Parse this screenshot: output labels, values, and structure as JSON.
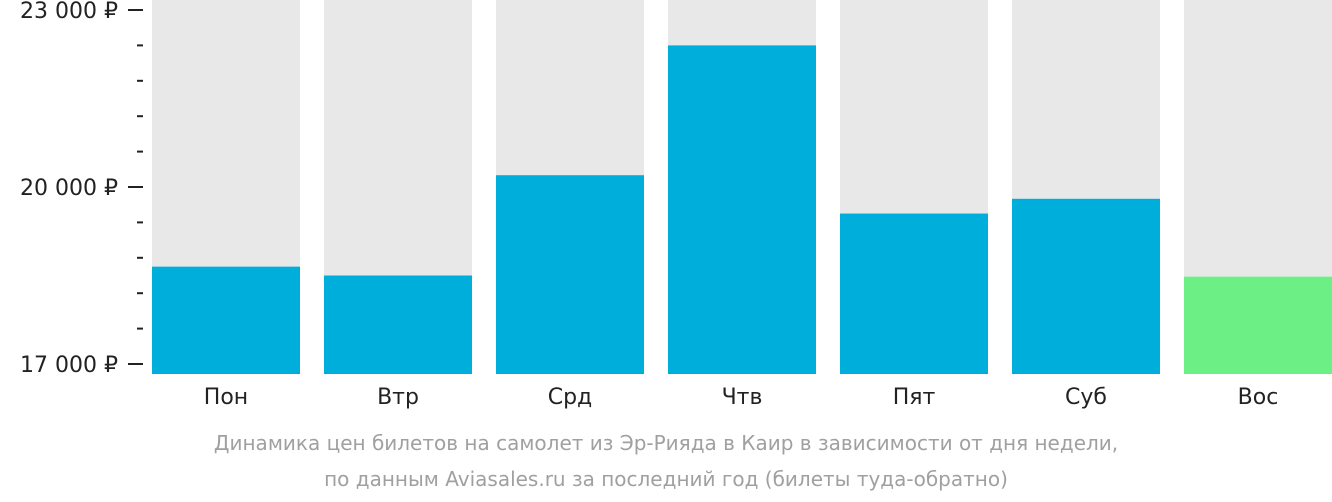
{
  "chart_data": {
    "type": "bar",
    "categories": [
      "Пон",
      "Втр",
      "Срд",
      "Чтв",
      "Пят",
      "Суб",
      "Вос"
    ],
    "values": [
      18650,
      18500,
      20200,
      22400,
      19550,
      19800,
      18480
    ],
    "ylim": [
      17000,
      23000
    ],
    "y_ticks": [
      {
        "value": 17000,
        "label": "17 000 ₽"
      },
      {
        "value": 20000,
        "label": "20 000 ₽"
      },
      {
        "value": 23000,
        "label": "23 000 ₽"
      }
    ],
    "y_minor_step": 600,
    "highlight_index": 6,
    "colors": {
      "bar": "#00aedb",
      "highlight": "#6cf086",
      "background_column": "#e8e8e8",
      "axis_text": "#222222",
      "caption_text": "#a0a0a0"
    },
    "caption": [
      "Динамика цен билетов на самолет из Эр-Рияда в Каир в зависимости от дня недели,",
      "по данным Aviasales.ru за последний год (билеты туда-обратно)"
    ]
  }
}
